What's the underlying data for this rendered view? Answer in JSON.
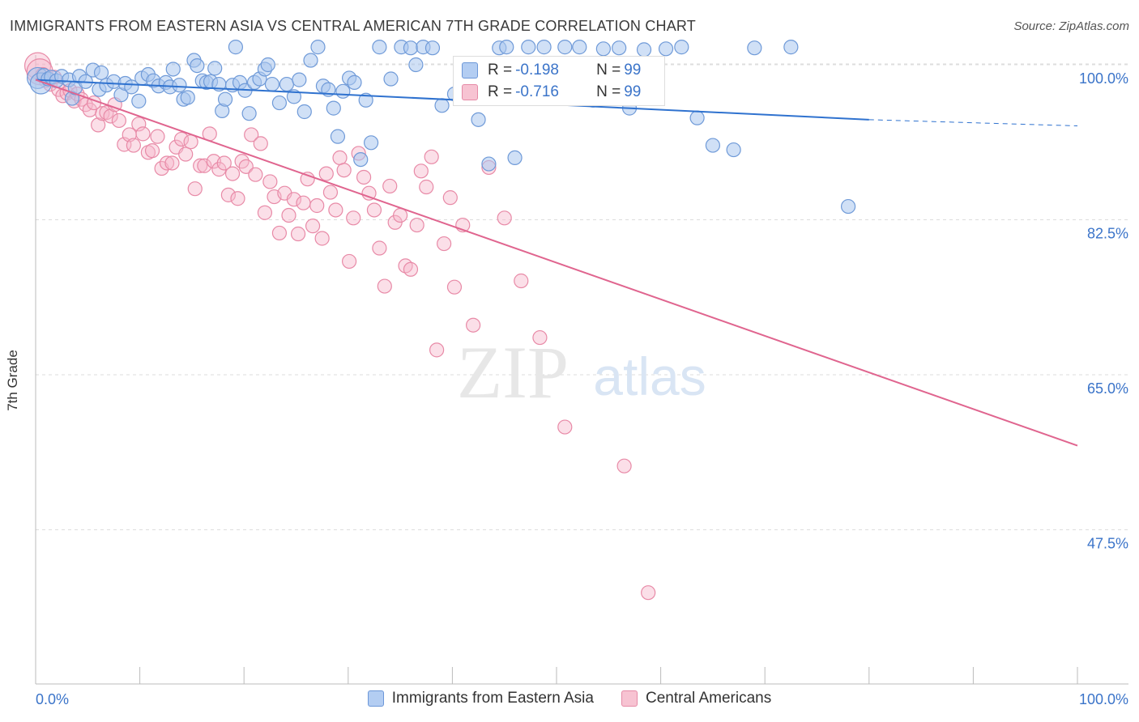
{
  "title": "IMMIGRANTS FROM EASTERN ASIA VS CENTRAL AMERICAN 7TH GRADE CORRELATION CHART",
  "source": "Source: ZipAtlas.com",
  "watermark": {
    "zip": "ZIP",
    "atlas": "atlas"
  },
  "colors": {
    "blue_fill": "#a9c6ee",
    "blue_stroke": "#6f9ad8",
    "blue_line": "#2f72cf",
    "pink_fill": "#f6b9cb",
    "pink_stroke": "#e88aa7",
    "pink_line": "#e0658f",
    "accent_text": "#3b74c9",
    "grid": "#dddddd"
  },
  "stats": {
    "blue": {
      "r_label": "R = ",
      "r_value": "-0.198",
      "n_label": "N = ",
      "n_value": "99"
    },
    "pink": {
      "r_label": "R = ",
      "r_value": "-0.716",
      "n_label": "N = ",
      "n_value": "99"
    }
  },
  "legend": {
    "blue": "Immigrants from Eastern Asia",
    "pink": "Central Americans"
  },
  "chart_data": {
    "type": "scatter",
    "title": "IMMIGRANTS FROM EASTERN ASIA VS CENTRAL AMERICAN 7TH GRADE CORRELATION CHART",
    "xlabel": "",
    "ylabel": "7th Grade",
    "xlim": [
      0,
      100
    ],
    "ylim": [
      32.5,
      102.5
    ],
    "x_tick_labels": [
      "0.0%",
      "100.0%"
    ],
    "y_ticks": [
      100,
      82.5,
      65,
      47.5
    ],
    "y_tick_labels": [
      "100.0%",
      "82.5%",
      "65.0%",
      "47.5%"
    ],
    "grid": "horizontal dashed",
    "legend_position": "bottom",
    "series": [
      {
        "name": "Immigrants from Eastern Asia",
        "color": "#6f9ad8",
        "trend": {
          "x": [
            0,
            80,
            100
          ],
          "y": [
            98.3,
            93.8,
            93.1
          ],
          "dashed_from_x": 80
        },
        "points": [
          [
            0.2,
            98.5
          ],
          [
            0.5,
            97.9
          ],
          [
            0.8,
            98.8
          ],
          [
            1.2,
            98.4
          ],
          [
            1.5,
            98.6
          ],
          [
            2.0,
            98.2
          ],
          [
            2.5,
            98.7
          ],
          [
            3.2,
            98.3
          ],
          [
            3.5,
            96.2
          ],
          [
            3.8,
            97.4
          ],
          [
            4.2,
            98.7
          ],
          [
            4.8,
            98.1
          ],
          [
            5.5,
            99.4
          ],
          [
            6.1,
            97.2
          ],
          [
            6.3,
            99.1
          ],
          [
            6.8,
            97.7
          ],
          [
            7.5,
            98.1
          ],
          [
            8.2,
            96.6
          ],
          [
            8.6,
            97.9
          ],
          [
            9.2,
            97.5
          ],
          [
            9.9,
            95.9
          ],
          [
            10.2,
            98.5
          ],
          [
            10.8,
            98.9
          ],
          [
            11.3,
            98.2
          ],
          [
            11.8,
            97.6
          ],
          [
            12.5,
            98.0
          ],
          [
            12.9,
            97.5
          ],
          [
            13.2,
            99.5
          ],
          [
            13.8,
            97.7
          ],
          [
            14.2,
            96.1
          ],
          [
            14.6,
            96.3
          ],
          [
            15.2,
            100.5
          ],
          [
            15.5,
            99.9
          ],
          [
            16.0,
            98.2
          ],
          [
            16.4,
            98.0
          ],
          [
            16.8,
            98.1
          ],
          [
            17.2,
            99.6
          ],
          [
            17.6,
            97.8
          ],
          [
            17.9,
            94.8
          ],
          [
            18.2,
            96.1
          ],
          [
            18.9,
            97.7
          ],
          [
            19.2,
            102.0
          ],
          [
            19.6,
            98.0
          ],
          [
            20.1,
            97.1
          ],
          [
            20.5,
            94.5
          ],
          [
            21.0,
            98.0
          ],
          [
            21.5,
            98.4
          ],
          [
            22.0,
            99.5
          ],
          [
            22.3,
            100.0
          ],
          [
            22.7,
            97.8
          ],
          [
            23.4,
            95.7
          ],
          [
            24.1,
            97.8
          ],
          [
            24.8,
            96.4
          ],
          [
            25.3,
            98.3
          ],
          [
            25.8,
            94.7
          ],
          [
            26.4,
            100.5
          ],
          [
            27.1,
            102.0
          ],
          [
            27.6,
            97.6
          ],
          [
            28.1,
            97.2
          ],
          [
            28.6,
            95.1
          ],
          [
            29.0,
            91.9
          ],
          [
            29.5,
            97.0
          ],
          [
            30.1,
            98.5
          ],
          [
            30.6,
            98.0
          ],
          [
            31.2,
            89.3
          ],
          [
            31.7,
            96.0
          ],
          [
            32.2,
            91.2
          ],
          [
            33.0,
            102.0
          ],
          [
            34.1,
            98.4
          ],
          [
            35.1,
            102.0
          ],
          [
            36.0,
            101.9
          ],
          [
            36.5,
            100.0
          ],
          [
            37.2,
            102.0
          ],
          [
            38.1,
            101.9
          ],
          [
            39.0,
            95.4
          ],
          [
            40.2,
            96.7
          ],
          [
            41.4,
            97.9
          ],
          [
            42.5,
            93.8
          ],
          [
            43.5,
            88.8
          ],
          [
            44.5,
            101.9
          ],
          [
            45.2,
            102.0
          ],
          [
            46.0,
            89.5
          ],
          [
            47.3,
            102.0
          ],
          [
            48.8,
            102.0
          ],
          [
            50.8,
            102.0
          ],
          [
            52.2,
            102.0
          ],
          [
            53.5,
            96.0
          ],
          [
            54.5,
            101.8
          ],
          [
            56.0,
            101.9
          ],
          [
            57.0,
            95.1
          ],
          [
            58.4,
            101.7
          ],
          [
            60.5,
            101.8
          ],
          [
            62.0,
            102.0
          ],
          [
            63.5,
            94.0
          ],
          [
            65.0,
            90.9
          ],
          [
            67.0,
            90.4
          ],
          [
            69.0,
            101.9
          ],
          [
            72.5,
            102.0
          ],
          [
            78.0,
            84.0
          ]
        ]
      },
      {
        "name": "Central Americans",
        "color": "#e88aa7",
        "trend": {
          "x": [
            0,
            100
          ],
          "y": [
            98.3,
            57.0
          ]
        },
        "points": [
          [
            0.2,
            99.9
          ],
          [
            0.4,
            99.2
          ],
          [
            0.7,
            98.9
          ],
          [
            1.0,
            98.2
          ],
          [
            1.4,
            97.8
          ],
          [
            1.8,
            98.6
          ],
          [
            2.2,
            97.2
          ],
          [
            2.6,
            96.5
          ],
          [
            3.0,
            96.8
          ],
          [
            3.3,
            97.1
          ],
          [
            3.7,
            95.9
          ],
          [
            4.0,
            96.7
          ],
          [
            4.4,
            96.1
          ],
          [
            4.8,
            95.5
          ],
          [
            5.2,
            94.9
          ],
          [
            5.6,
            95.7
          ],
          [
            6.0,
            93.2
          ],
          [
            6.4,
            94.5
          ],
          [
            6.8,
            94.6
          ],
          [
            7.2,
            94.2
          ],
          [
            7.6,
            95.5
          ],
          [
            8.0,
            93.7
          ],
          [
            8.5,
            91.0
          ],
          [
            9.0,
            92.1
          ],
          [
            9.4,
            90.9
          ],
          [
            9.9,
            93.3
          ],
          [
            10.3,
            92.2
          ],
          [
            10.8,
            90.1
          ],
          [
            11.2,
            90.3
          ],
          [
            11.7,
            91.9
          ],
          [
            12.1,
            88.3
          ],
          [
            12.6,
            88.9
          ],
          [
            13.1,
            88.9
          ],
          [
            13.5,
            90.7
          ],
          [
            14.0,
            91.6
          ],
          [
            14.4,
            89.9
          ],
          [
            14.9,
            91.3
          ],
          [
            15.3,
            86.0
          ],
          [
            15.8,
            88.6
          ],
          [
            16.2,
            88.6
          ],
          [
            16.7,
            92.2
          ],
          [
            17.1,
            89.1
          ],
          [
            17.6,
            88.2
          ],
          [
            18.1,
            88.9
          ],
          [
            18.5,
            85.3
          ],
          [
            18.9,
            87.7
          ],
          [
            19.4,
            84.9
          ],
          [
            19.8,
            89.1
          ],
          [
            20.2,
            88.5
          ],
          [
            20.7,
            92.1
          ],
          [
            21.1,
            87.6
          ],
          [
            21.6,
            91.1
          ],
          [
            22.0,
            83.3
          ],
          [
            22.5,
            86.8
          ],
          [
            22.9,
            85.1
          ],
          [
            23.4,
            81.0
          ],
          [
            23.9,
            85.5
          ],
          [
            24.3,
            83.0
          ],
          [
            24.8,
            84.8
          ],
          [
            25.2,
            80.9
          ],
          [
            25.7,
            84.4
          ],
          [
            26.1,
            87.1
          ],
          [
            26.6,
            81.8
          ],
          [
            27.0,
            84.1
          ],
          [
            27.5,
            80.4
          ],
          [
            27.9,
            87.7
          ],
          [
            28.3,
            85.6
          ],
          [
            28.8,
            83.6
          ],
          [
            29.2,
            89.5
          ],
          [
            29.6,
            88.1
          ],
          [
            30.1,
            77.8
          ],
          [
            30.5,
            82.7
          ],
          [
            31.0,
            90.0
          ],
          [
            31.5,
            87.3
          ],
          [
            32.0,
            85.5
          ],
          [
            32.5,
            83.6
          ],
          [
            33.0,
            79.3
          ],
          [
            33.5,
            75.0
          ],
          [
            34.0,
            86.3
          ],
          [
            34.5,
            82.2
          ],
          [
            35.0,
            83.0
          ],
          [
            35.5,
            77.3
          ],
          [
            36.0,
            76.9
          ],
          [
            36.6,
            81.9
          ],
          [
            37.0,
            88.0
          ],
          [
            37.5,
            86.2
          ],
          [
            38.0,
            89.6
          ],
          [
            38.5,
            67.8
          ],
          [
            39.2,
            79.8
          ],
          [
            39.8,
            85.0
          ],
          [
            40.2,
            74.9
          ],
          [
            41.0,
            81.9
          ],
          [
            42.0,
            70.6
          ],
          [
            43.5,
            88.4
          ],
          [
            45.0,
            82.7
          ],
          [
            46.6,
            75.6
          ],
          [
            48.4,
            69.2
          ],
          [
            50.8,
            59.1
          ],
          [
            56.5,
            54.7
          ],
          [
            58.8,
            40.4
          ]
        ]
      }
    ]
  }
}
